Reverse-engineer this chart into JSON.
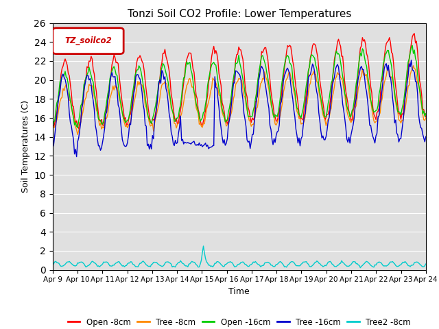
{
  "title": "Tonzi Soil CO2 Profile: Lower Temperatures",
  "xlabel": "Time",
  "ylabel": "Soil Temperatures (C)",
  "ylim": [
    0,
    26
  ],
  "yticks": [
    0,
    2,
    4,
    6,
    8,
    10,
    12,
    14,
    16,
    18,
    20,
    22,
    24,
    26
  ],
  "xtick_labels": [
    "Apr 9",
    "Apr 10",
    "Apr 11",
    "Apr 12",
    "Apr 13",
    "Apr 14",
    "Apr 15",
    "Apr 16",
    "Apr 17",
    "Apr 18",
    "Apr 19",
    "Apr 20",
    "Apr 21",
    "Apr 22",
    "Apr 23",
    "Apr 24"
  ],
  "legend_label": "TZ_soilco2",
  "legend_box_facecolor": "#ffffff",
  "legend_box_edgecolor": "#cc0000",
  "legend_text_color": "#cc0000",
  "series_colors": [
    "#ff0000",
    "#ff8800",
    "#00cc00",
    "#0000cc",
    "#00cccc"
  ],
  "series_labels": [
    "Open -8cm",
    "Tree -8cm",
    "Open -16cm",
    "Tree -16cm",
    "Tree2 -8cm"
  ],
  "background_color": "#e0e0e0",
  "grid_color": "#ffffff",
  "n_days": 15
}
